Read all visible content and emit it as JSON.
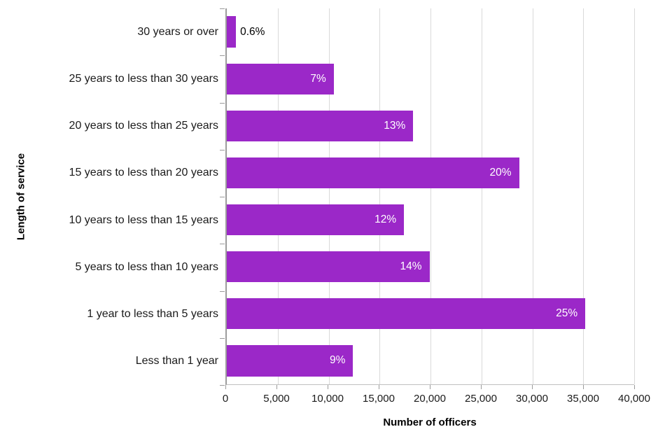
{
  "colors": {
    "bar": "#9B28C8",
    "gridline": "#D9D9D9",
    "axis": "#9C9C9C",
    "inside_label": "#FFFFFF",
    "outside_label": "#000000"
  },
  "chart_data": {
    "type": "bar",
    "orientation": "horizontal",
    "title": "",
    "xlabel": "Number of officers",
    "ylabel": "Length of service",
    "xlim": [
      0,
      40000
    ],
    "grid": true,
    "legend": false,
    "xticks": [
      0,
      5000,
      10000,
      15000,
      20000,
      25000,
      30000,
      35000,
      40000
    ],
    "xtick_labels": [
      "0",
      "5,000",
      "10,000",
      "15,000",
      "20,000",
      "25,000",
      "30,000",
      "35,000",
      "40,000"
    ],
    "categories": [
      "30 years or over",
      "25 years to less than 30 years",
      "20 years to less than 25 years",
      "15 years to less than 20 years",
      "10 years to less than 15 years",
      "5 years to less than 10 years",
      "1 year to less than 5 years",
      "Less than 1 year"
    ],
    "values": [
      900,
      10500,
      18300,
      28700,
      17400,
      19900,
      35200,
      12400
    ],
    "bar_labels": [
      "0.6%",
      "7%",
      "13%",
      "20%",
      "12%",
      "14%",
      "25%",
      "9%"
    ],
    "label_inside": [
      false,
      true,
      true,
      true,
      true,
      true,
      true,
      true
    ]
  }
}
